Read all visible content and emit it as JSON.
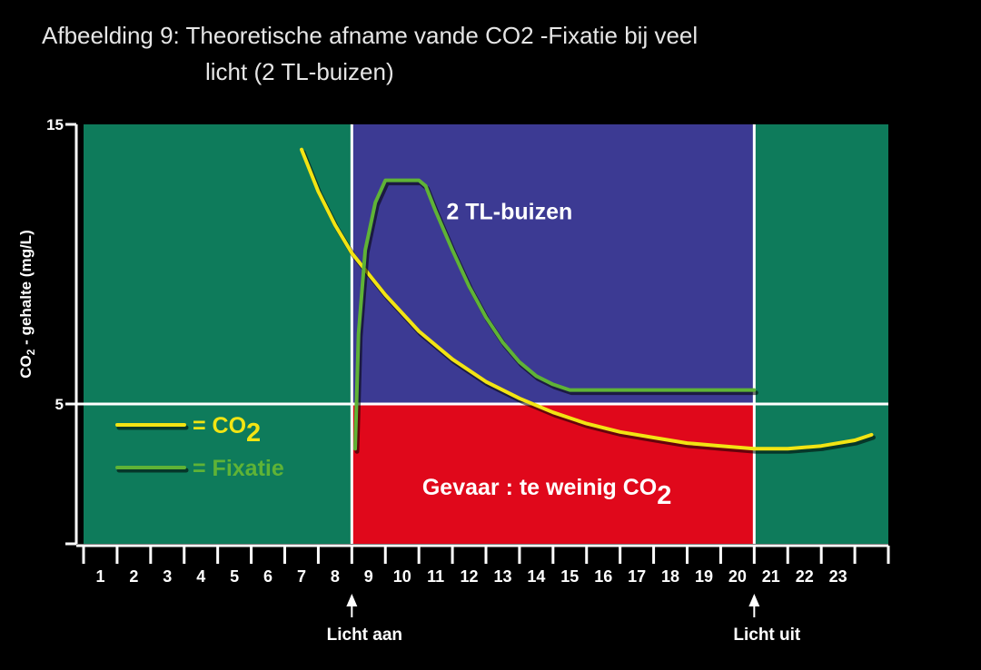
{
  "title_line1": "Afbeelding 9: Theoretische afname vande CO2 -Fixatie bij veel",
  "title_line2": "licht (2 TL-buizen)",
  "chart_data": {
    "type": "line",
    "title": "Afbeelding 9: Theoretische afname vande CO2 -Fixatie bij veel licht (2 TL-buizen)",
    "ylabel": {
      "base": "CO",
      "sub": "2",
      "rest": " - gehalte (mg/L)"
    },
    "xlim": [
      0,
      24
    ],
    "ylim": [
      0,
      15
    ],
    "x_ticks": [
      "1",
      "2",
      "3",
      "4",
      "5",
      "6",
      "7",
      "8",
      "9",
      "10",
      "11",
      "12",
      "13",
      "14",
      "15",
      "16",
      "17",
      "18",
      "19",
      "20",
      "21",
      "22",
      "23"
    ],
    "y_ticks": [
      {
        "value": 15,
        "label": "15"
      },
      {
        "value": 5,
        "label": "5"
      },
      {
        "value": 0,
        "label": ""
      }
    ],
    "gridlines": {
      "x": [
        8,
        20
      ],
      "y": [
        5
      ]
    },
    "regions": [
      {
        "name": "night-left",
        "x": [
          0,
          8
        ],
        "y": [
          0,
          15
        ],
        "color": "#0e7b5b",
        "label": ""
      },
      {
        "name": "light",
        "x": [
          8,
          20
        ],
        "y": [
          5,
          15
        ],
        "color": "#3c3a93",
        "label": "2 TL-buizen"
      },
      {
        "name": "danger",
        "x": [
          8,
          20
        ],
        "y": [
          0,
          5
        ],
        "color": "#e0081b",
        "label": "Gevaar : te weinig CO",
        "label_sub": "2"
      },
      {
        "name": "night-right",
        "x": [
          20,
          24
        ],
        "y": [
          0,
          15
        ],
        "color": "#0e7b5b",
        "label": ""
      }
    ],
    "series": [
      {
        "name": "CO2",
        "color": "#f2e413",
        "x": [
          6.5,
          7,
          7.5,
          8,
          9,
          10,
          11,
          12,
          13,
          14,
          15,
          16,
          17,
          18,
          19,
          20,
          21,
          22,
          23,
          23.5
        ],
        "y": [
          14.1,
          12.6,
          11.4,
          10.4,
          8.9,
          7.6,
          6.6,
          5.8,
          5.2,
          4.7,
          4.3,
          4.0,
          3.8,
          3.6,
          3.5,
          3.4,
          3.4,
          3.5,
          3.7,
          3.9
        ]
      },
      {
        "name": "Fixatie",
        "color": "#5fb336",
        "x": [
          8.1,
          8.2,
          8.4,
          8.7,
          9.0,
          9.5,
          10.0,
          10.2,
          10.5,
          11.0,
          11.5,
          12.0,
          12.5,
          13.0,
          13.5,
          14.0,
          14.5,
          16,
          18,
          20
        ],
        "y": [
          3.4,
          7.5,
          10.5,
          12.2,
          13.0,
          13.0,
          13.0,
          12.8,
          11.9,
          10.5,
          9.2,
          8.1,
          7.2,
          6.5,
          6.0,
          5.7,
          5.5,
          5.5,
          5.5,
          5.5
        ]
      }
    ],
    "legend": {
      "placement": "left-middle",
      "items": [
        {
          "series": "CO2",
          "label": "= CO",
          "sub": "2",
          "color": "#f2e413"
        },
        {
          "series": "Fixatie",
          "label": "= Fixatie",
          "sub": "",
          "color": "#5fb336"
        }
      ]
    },
    "annotations": [
      {
        "x": 8,
        "text": "Licht aan"
      },
      {
        "x": 20,
        "text": "Licht uit"
      }
    ]
  }
}
